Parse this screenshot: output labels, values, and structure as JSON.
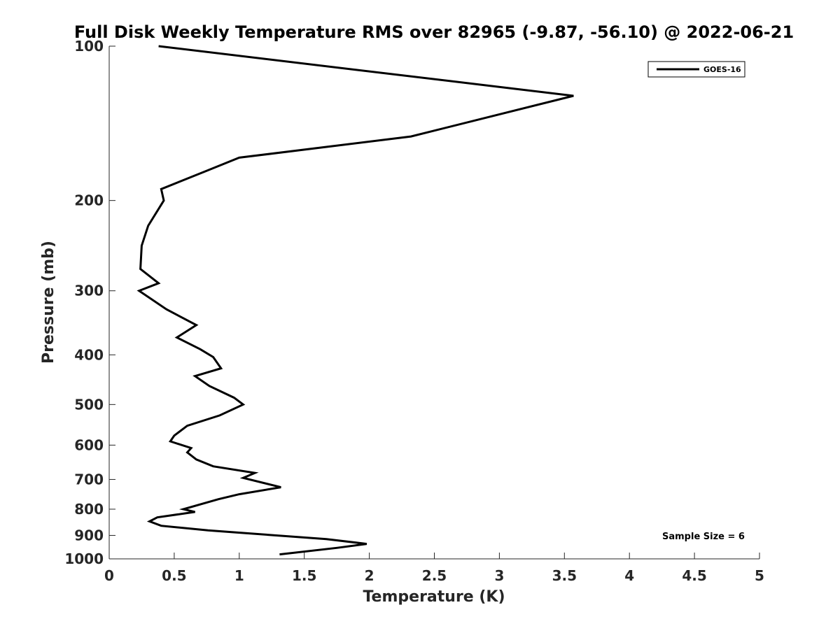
{
  "chart_data": {
    "type": "line",
    "title": "Full Disk Weekly Temperature RMS over 82965 (-9.87, -56.10) @ 2022-06-21",
    "xlabel": "Temperature (K)",
    "ylabel": "Pressure (mb)",
    "xlim": [
      0,
      5
    ],
    "ylim": [
      100,
      1000
    ],
    "y_scale": "log",
    "y_reversed": true,
    "grid": false,
    "legend_position": "top-right",
    "x_ticks": [
      "0",
      "0.5",
      "1",
      "1.5",
      "2",
      "2.5",
      "3",
      "3.5",
      "4",
      "4.5",
      "5"
    ],
    "y_ticks": [
      "100",
      "200",
      "300",
      "400",
      "500",
      "600",
      "700",
      "800",
      "900",
      "1000"
    ],
    "series": [
      {
        "name": "GOES-16",
        "color": "#000000",
        "points": [
          [
            0.38,
            100
          ],
          [
            3.57,
            125
          ],
          [
            2.32,
            150
          ],
          [
            1.0,
            165
          ],
          [
            0.75,
            175
          ],
          [
            0.4,
            190
          ],
          [
            0.42,
            200
          ],
          [
            0.3,
            224
          ],
          [
            0.25,
            245
          ],
          [
            0.24,
            272
          ],
          [
            0.38,
            290
          ],
          [
            0.23,
            300
          ],
          [
            0.44,
            326
          ],
          [
            0.67,
            350
          ],
          [
            0.52,
            370
          ],
          [
            0.7,
            390
          ],
          [
            0.8,
            404
          ],
          [
            0.86,
            425
          ],
          [
            0.66,
            440
          ],
          [
            0.77,
            460
          ],
          [
            0.96,
            485
          ],
          [
            1.03,
            500
          ],
          [
            0.85,
            525
          ],
          [
            0.6,
            550
          ],
          [
            0.5,
            575
          ],
          [
            0.47,
            590
          ],
          [
            0.63,
            608
          ],
          [
            0.6,
            620
          ],
          [
            0.67,
            640
          ],
          [
            0.8,
            660
          ],
          [
            1.12,
            680
          ],
          [
            1.03,
            695
          ],
          [
            1.32,
            725
          ],
          [
            1.0,
            748
          ],
          [
            0.84,
            765
          ],
          [
            0.57,
            800
          ],
          [
            0.66,
            810
          ],
          [
            0.37,
            830
          ],
          [
            0.31,
            845
          ],
          [
            0.4,
            862
          ],
          [
            0.76,
            880
          ],
          [
            1.67,
            915
          ],
          [
            1.98,
            935
          ],
          [
            1.75,
            952
          ],
          [
            1.31,
            980
          ]
        ]
      }
    ],
    "annotation": "Sample Size = 6"
  }
}
